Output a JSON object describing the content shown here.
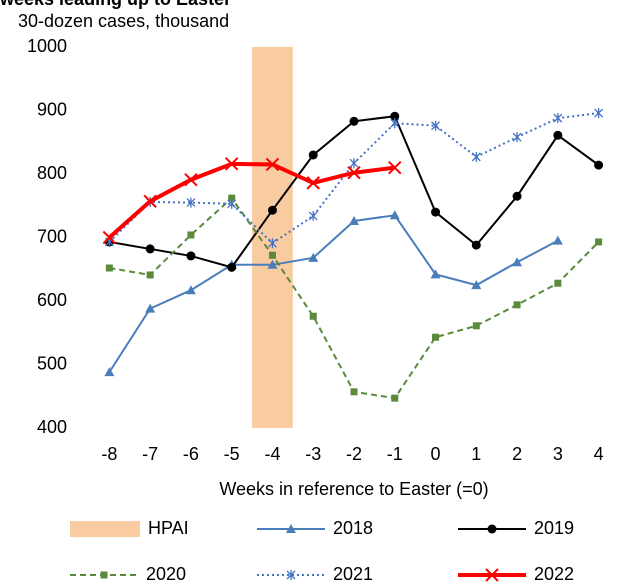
{
  "chart_data": {
    "type": "line",
    "title": "weeks leading up to Easter",
    "subtitle": "30-dozen cases, thousand",
    "x_label": "Weeks in reference to Easter (=0)",
    "x": [
      -8,
      -7,
      -6,
      -5,
      -4,
      -3,
      -2,
      -1,
      0,
      1,
      2,
      3,
      4
    ],
    "xlim": [
      -8.5,
      4.5
    ],
    "ylim": [
      400,
      1000
    ],
    "yticks": [
      400,
      500,
      600,
      700,
      800,
      900,
      1000
    ],
    "grid": false,
    "band": {
      "name": "HPAI",
      "color": "#f8cba0",
      "x_range": [
        -4.5,
        -3.5
      ]
    },
    "series": [
      {
        "name": "2018",
        "color": "#4a7ebb",
        "line_style": "solid",
        "line_width": 2,
        "marker": "triangle",
        "values": [
          488,
          588,
          617,
          657,
          657,
          668,
          726,
          735,
          642,
          625,
          661,
          695,
          null
        ]
      },
      {
        "name": "2019",
        "color": "#000000",
        "line_style": "solid",
        "line_width": 2,
        "marker": "circle",
        "values": [
          693,
          682,
          671,
          653,
          743,
          830,
          883,
          891,
          740,
          688,
          765,
          861,
          814
        ]
      },
      {
        "name": "2020",
        "color": "#5a8a3a",
        "line_style": "dashed",
        "line_width": 2,
        "marker": "square",
        "values": [
          652,
          641,
          704,
          762,
          672,
          576,
          457,
          447,
          543,
          561,
          594,
          628,
          693
        ]
      },
      {
        "name": "2021",
        "color": "#4472c4",
        "line_style": "dotted",
        "line_width": 2,
        "marker": "asterisk",
        "values": [
          693,
          756,
          755,
          753,
          691,
          734,
          817,
          880,
          876,
          827,
          858,
          888,
          896
        ]
      },
      {
        "name": "2022",
        "color": "#ff0000",
        "line_style": "solid",
        "line_width": 4,
        "marker": "x",
        "values": [
          700,
          757,
          791,
          816,
          815,
          786,
          802,
          810,
          null,
          null,
          null,
          null,
          null
        ]
      }
    ]
  }
}
